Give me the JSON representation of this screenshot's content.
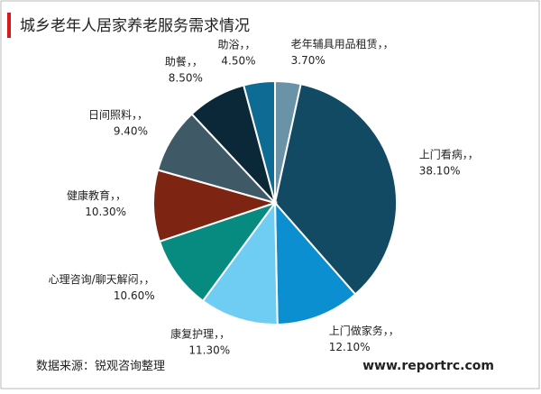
{
  "header": {
    "title": "城乡老年人居家养老服务需求情况"
  },
  "chart_data": {
    "type": "pie",
    "categories": [
      "老年辅具用品租赁",
      "上门看病",
      "上门做家务",
      "康复护理",
      "心理咨询/聊天解闷",
      "健康教育",
      "日间照料",
      "助餐",
      "助浴"
    ],
    "values": [
      3.7,
      38.1,
      12.1,
      11.3,
      10.6,
      10.3,
      9.4,
      8.5,
      4.5
    ],
    "value_labels": [
      "3.70%",
      "38.10%",
      "12.10%",
      "11.30%",
      "10.60%",
      "10.30%",
      "9.40%",
      "8.50%",
      "4.50%"
    ],
    "label_separator": "，，",
    "colors": [
      "#6a93a8",
      "#124a63",
      "#0c8fd0",
      "#6fcdf3",
      "#078a80",
      "#7d2412",
      "#3f5a66",
      "#0a2838",
      "#0e6b94"
    ]
  },
  "footer": {
    "source": "数据来源：锐观咨询整理",
    "website": "www.reportrc.com"
  }
}
